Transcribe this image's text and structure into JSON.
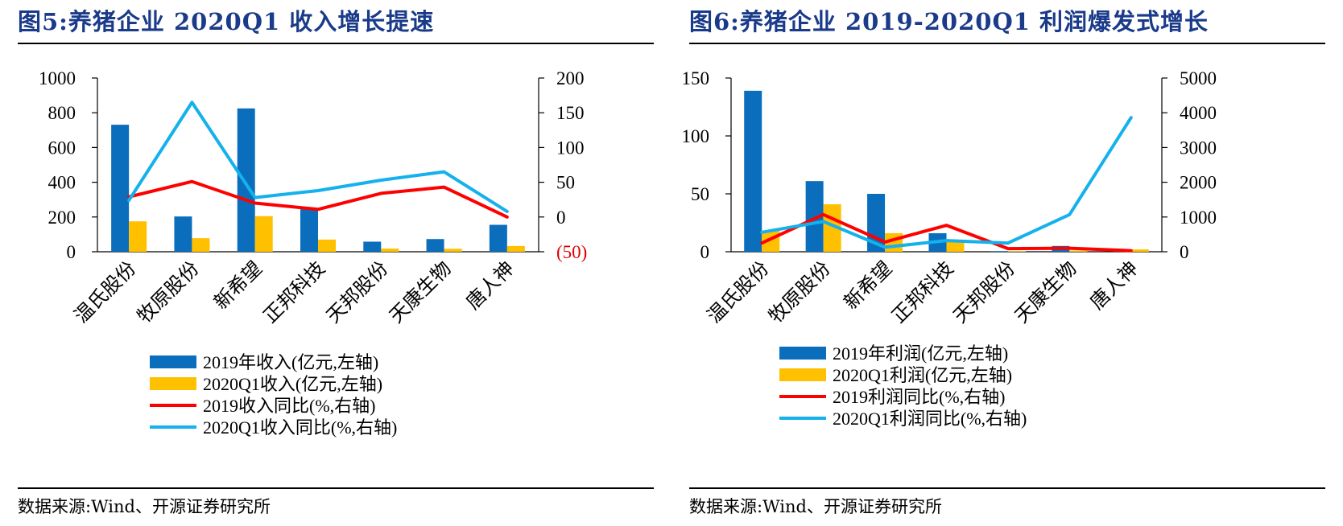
{
  "charts": [
    {
      "title": "图5:养猪企业 2020Q1 收入增长提速",
      "source": "数据来源:Wind、开源证券研究所",
      "chart_data": {
        "type": "bar+line",
        "categories": [
          "温氏股份",
          "牧原股份",
          "新希望",
          "正邦科技",
          "天邦股份",
          "天康生物",
          "唐人神"
        ],
        "left_axis": {
          "ylim": [
            0,
            1000
          ],
          "ticks": [
            "0",
            "200",
            "400",
            "600",
            "800",
            "1000"
          ],
          "tick_values": [
            0,
            200,
            400,
            600,
            800,
            1000
          ]
        },
        "right_axis": {
          "ylim": [
            -50,
            200
          ],
          "ticks": [
            "(50)",
            "0",
            "50",
            "100",
            "150",
            "200"
          ],
          "tick_values": [
            -50,
            0,
            50,
            100,
            150,
            200
          ],
          "negative_tick_color": "#e00000"
        },
        "series": [
          {
            "name": "2019年收入(亿元,左轴)",
            "type": "bar",
            "axis": "left",
            "color": "#0a6ebd",
            "values": [
              731,
              203,
              825,
              245,
              58,
              73,
              155
            ]
          },
          {
            "name": "2020Q1收入(亿元,左轴)",
            "type": "bar",
            "axis": "left",
            "color": "#ffc000",
            "values": [
              175,
              78,
              205,
              70,
              18,
              17,
              33
            ]
          },
          {
            "name": "2019收入同比(%,右轴)",
            "type": "line",
            "axis": "right",
            "color": "#ff0000",
            "values": [
              29,
              51,
              20,
              11,
              34,
              43,
              0
            ]
          },
          {
            "name": "2020Q1收入同比(%,右轴)",
            "type": "line",
            "axis": "right",
            "color": "#15b1ec",
            "values": [
              24,
              165,
              28,
              38,
              53,
              65,
              8
            ]
          }
        ]
      }
    },
    {
      "title": "图6:养猪企业 2019-2020Q1 利润爆发式增长",
      "source": "数据来源:Wind、开源证券研究所",
      "chart_data": {
        "type": "bar+line",
        "categories": [
          "温氏股份",
          "牧原股份",
          "新希望",
          "正邦科技",
          "天邦股份",
          "天康生物",
          "唐人神"
        ],
        "left_axis": {
          "ylim": [
            0,
            150
          ],
          "ticks": [
            "0",
            "50",
            "100",
            "150"
          ],
          "tick_values": [
            0,
            50,
            100,
            150
          ]
        },
        "right_axis": {
          "ylim": [
            0,
            5000
          ],
          "ticks": [
            "0",
            "1000",
            "2000",
            "3000",
            "4000",
            "5000"
          ],
          "tick_values": [
            0,
            1000,
            2000,
            3000,
            4000,
            5000
          ],
          "negative_tick_color": "#e00000"
        },
        "series": [
          {
            "name": "2019年利润(亿元,左轴)",
            "type": "bar",
            "axis": "left",
            "color": "#0a6ebd",
            "values": [
              139,
              61,
              50,
              16,
              0.5,
              5,
              1
            ]
          },
          {
            "name": "2020Q1利润(亿元,左轴)",
            "type": "bar",
            "axis": "left",
            "color": "#ffc000",
            "values": [
              18,
              41,
              16,
              9,
              0.5,
              1,
              2
            ]
          },
          {
            "name": "2019利润同比(%,右轴)",
            "type": "line",
            "axis": "right",
            "color": "#ff0000",
            "values": [
              250,
              1070,
              280,
              760,
              90,
              100,
              30
            ]
          },
          {
            "name": "2020Q1利润同比(%,右轴)",
            "type": "line",
            "axis": "right",
            "color": "#15b1ec",
            "values": [
              560,
              870,
              130,
              320,
              250,
              1070,
              3860
            ]
          }
        ]
      }
    }
  ]
}
